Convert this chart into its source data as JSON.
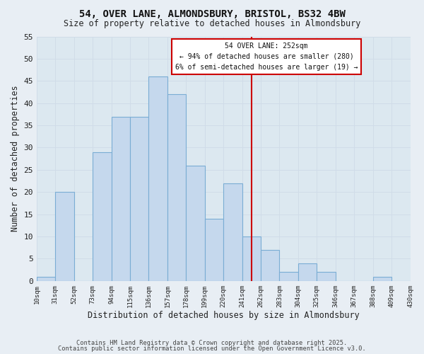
{
  "title1": "54, OVER LANE, ALMONDSBURY, BRISTOL, BS32 4BW",
  "title2": "Size of property relative to detached houses in Almondsbury",
  "xlabel": "Distribution of detached houses by size in Almondsbury",
  "ylabel": "Number of detached properties",
  "bin_edges": [
    10,
    31,
    52,
    73,
    94,
    115,
    136,
    157,
    178,
    199,
    220,
    241,
    262,
    283,
    304,
    325,
    346,
    367,
    388,
    409,
    430
  ],
  "bar_heights": [
    1,
    20,
    0,
    29,
    37,
    37,
    46,
    42,
    26,
    14,
    22,
    10,
    7,
    2,
    4,
    2,
    0,
    0,
    1,
    0
  ],
  "bar_color": "#c5d8ed",
  "bar_edge_color": "#7aadd4",
  "grid_color": "#d0dce8",
  "vline_x": 252,
  "vline_color": "#cc0000",
  "ylim": [
    0,
    55
  ],
  "ytick_max": 55,
  "ytick_step": 5,
  "annotation_title": "54 OVER LANE: 252sqm",
  "annotation_line1": "← 94% of detached houses are smaller (280)",
  "annotation_line2": "6% of semi-detached houses are larger (19) →",
  "footnote1": "Contains HM Land Registry data © Crown copyright and database right 2025.",
  "footnote2": "Contains public sector information licensed under the Open Government Licence v3.0.",
  "bg_color": "#e8eef4",
  "plot_bg_color": "#dce8f0"
}
